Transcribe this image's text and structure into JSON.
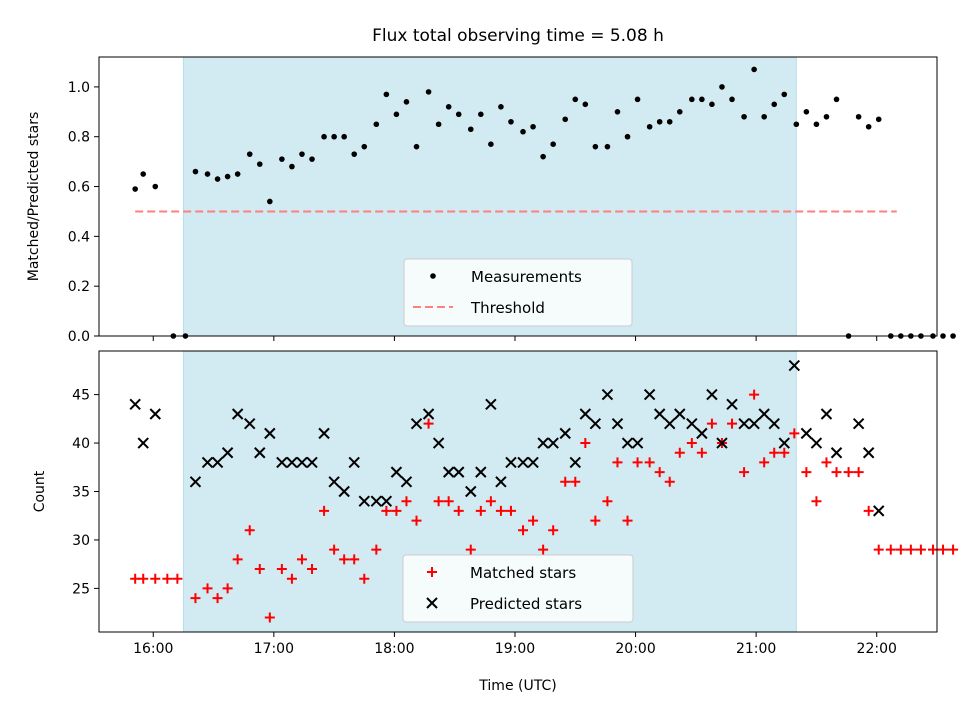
{
  "chart_data": [
    {
      "type": "scatter",
      "title": "Flux total observing time = 5.08 h",
      "ylabel": "Matched/Predicted stars",
      "xlabel": "",
      "xlim": [
        "15:33",
        "22:30"
      ],
      "ylim": [
        0,
        1.12
      ],
      "yticks": [
        "0.0",
        "0.2",
        "0.4",
        "0.6",
        "0.8",
        "1.0"
      ],
      "shaded_span": [
        "16:15",
        "21:20"
      ],
      "shade_color": "#add8e6",
      "legend_placement": "lower center",
      "series": [
        {
          "name": "Measurements",
          "marker": "dot",
          "color": "#000000",
          "points": [
            [
              "15:51",
              0.59
            ],
            [
              "15:55",
              0.65
            ],
            [
              "16:01",
              0.6
            ],
            [
              "16:10",
              0.0
            ],
            [
              "16:16",
              0.0
            ],
            [
              "16:21",
              0.66
            ],
            [
              "16:27",
              0.65
            ],
            [
              "16:32",
              0.63
            ],
            [
              "16:37",
              0.64
            ],
            [
              "16:42",
              0.65
            ],
            [
              "16:48",
              0.73
            ],
            [
              "16:53",
              0.69
            ],
            [
              "16:58",
              0.54
            ],
            [
              "17:04",
              0.71
            ],
            [
              "17:09",
              0.68
            ],
            [
              "17:14",
              0.73
            ],
            [
              "17:19",
              0.71
            ],
            [
              "17:25",
              0.8
            ],
            [
              "17:30",
              0.8
            ],
            [
              "17:35",
              0.8
            ],
            [
              "17:40",
              0.73
            ],
            [
              "17:45",
              0.76
            ],
            [
              "17:51",
              0.85
            ],
            [
              "17:56",
              0.97
            ],
            [
              "18:01",
              0.89
            ],
            [
              "18:06",
              0.94
            ],
            [
              "18:11",
              0.76
            ],
            [
              "18:17",
              0.98
            ],
            [
              "18:22",
              0.85
            ],
            [
              "18:27",
              0.92
            ],
            [
              "18:32",
              0.89
            ],
            [
              "18:38",
              0.83
            ],
            [
              "18:43",
              0.89
            ],
            [
              "18:48",
              0.77
            ],
            [
              "18:53",
              0.92
            ],
            [
              "18:58",
              0.86
            ],
            [
              "19:04",
              0.82
            ],
            [
              "19:09",
              0.84
            ],
            [
              "19:14",
              0.72
            ],
            [
              "19:19",
              0.77
            ],
            [
              "19:25",
              0.87
            ],
            [
              "19:30",
              0.95
            ],
            [
              "19:35",
              0.93
            ],
            [
              "19:40",
              0.76
            ],
            [
              "19:46",
              0.76
            ],
            [
              "19:51",
              0.9
            ],
            [
              "19:56",
              0.8
            ],
            [
              "20:01",
              0.95
            ],
            [
              "20:07",
              0.84
            ],
            [
              "20:12",
              0.86
            ],
            [
              "20:17",
              0.86
            ],
            [
              "20:22",
              0.9
            ],
            [
              "20:28",
              0.95
            ],
            [
              "20:33",
              0.95
            ],
            [
              "20:38",
              0.93
            ],
            [
              "20:43",
              1.0
            ],
            [
              "20:48",
              0.95
            ],
            [
              "20:54",
              0.88
            ],
            [
              "20:59",
              1.07
            ],
            [
              "21:04",
              0.88
            ],
            [
              "21:09",
              0.93
            ],
            [
              "21:14",
              0.97
            ],
            [
              "21:20",
              0.85
            ],
            [
              "21:25",
              0.9
            ],
            [
              "21:30",
              0.85
            ],
            [
              "21:35",
              0.88
            ],
            [
              "21:40",
              0.95
            ],
            [
              "21:46",
              0.0
            ],
            [
              "21:51",
              0.88
            ],
            [
              "21:56",
              0.84
            ],
            [
              "22:01",
              0.87
            ],
            [
              "22:07",
              0.0
            ],
            [
              "22:12",
              0.0
            ],
            [
              "22:17",
              0.0
            ],
            [
              "22:22",
              0.0
            ],
            [
              "22:28",
              0.0
            ],
            [
              "22:33",
              0.0
            ],
            [
              "22:38",
              0.0
            ]
          ]
        },
        {
          "name": "Threshold",
          "marker": "dashed-line",
          "color": "#ff7f7f",
          "points": [
            [
              "15:51",
              0.5
            ],
            [
              "22:10",
              0.5
            ]
          ]
        }
      ]
    },
    {
      "type": "scatter",
      "title": "",
      "ylabel": "Count",
      "xlabel": "Time (UTC)",
      "xlim": [
        "15:33",
        "22:30"
      ],
      "ylim": [
        20.5,
        49.5
      ],
      "yticks": [
        "25",
        "30",
        "35",
        "40",
        "45"
      ],
      "xticks": [
        "16:00",
        "17:00",
        "18:00",
        "19:00",
        "20:00",
        "21:00",
        "22:00"
      ],
      "shaded_span": [
        "16:15",
        "21:20"
      ],
      "shade_color": "#add8e6",
      "legend_placement": "lower center",
      "series": [
        {
          "name": "Matched stars",
          "marker": "plus",
          "color": "#ff0000",
          "points": [
            [
              "15:51",
              26
            ],
            [
              "15:55",
              26
            ],
            [
              "16:01",
              26
            ],
            [
              "16:07",
              26
            ],
            [
              "16:12",
              26
            ],
            [
              "16:21",
              24
            ],
            [
              "16:27",
              25
            ],
            [
              "16:32",
              24
            ],
            [
              "16:37",
              25
            ],
            [
              "16:42",
              28
            ],
            [
              "16:48",
              31
            ],
            [
              "16:53",
              27
            ],
            [
              "16:58",
              22
            ],
            [
              "17:04",
              27
            ],
            [
              "17:09",
              26
            ],
            [
              "17:14",
              28
            ],
            [
              "17:19",
              27
            ],
            [
              "17:25",
              33
            ],
            [
              "17:30",
              29
            ],
            [
              "17:35",
              28
            ],
            [
              "17:40",
              28
            ],
            [
              "17:45",
              26
            ],
            [
              "17:51",
              29
            ],
            [
              "17:56",
              33
            ],
            [
              "18:01",
              33
            ],
            [
              "18:06",
              34
            ],
            [
              "18:11",
              32
            ],
            [
              "18:17",
              42
            ],
            [
              "18:22",
              34
            ],
            [
              "18:27",
              34
            ],
            [
              "18:32",
              33
            ],
            [
              "18:38",
              29
            ],
            [
              "18:43",
              33
            ],
            [
              "18:48",
              34
            ],
            [
              "18:53",
              33
            ],
            [
              "18:58",
              33
            ],
            [
              "19:04",
              31
            ],
            [
              "19:09",
              32
            ],
            [
              "19:14",
              29
            ],
            [
              "19:19",
              31
            ],
            [
              "19:25",
              36
            ],
            [
              "19:30",
              36
            ],
            [
              "19:35",
              40
            ],
            [
              "19:40",
              32
            ],
            [
              "19:46",
              34
            ],
            [
              "19:51",
              38
            ],
            [
              "19:56",
              32
            ],
            [
              "20:01",
              38
            ],
            [
              "20:07",
              38
            ],
            [
              "20:12",
              37
            ],
            [
              "20:17",
              36
            ],
            [
              "20:22",
              39
            ],
            [
              "20:28",
              40
            ],
            [
              "20:33",
              39
            ],
            [
              "20:38",
              42
            ],
            [
              "20:43",
              40
            ],
            [
              "20:48",
              42
            ],
            [
              "20:54",
              37
            ],
            [
              "20:59",
              45
            ],
            [
              "21:04",
              38
            ],
            [
              "21:09",
              39
            ],
            [
              "21:14",
              39
            ],
            [
              "21:19",
              41
            ],
            [
              "21:25",
              37
            ],
            [
              "21:30",
              34
            ],
            [
              "21:35",
              38
            ],
            [
              "21:40",
              37
            ],
            [
              "21:46",
              37
            ],
            [
              "21:51",
              37
            ],
            [
              "21:56",
              33
            ],
            [
              "22:01",
              29
            ],
            [
              "22:07",
              29
            ],
            [
              "22:12",
              29
            ],
            [
              "22:17",
              29
            ],
            [
              "22:22",
              29
            ],
            [
              "22:28",
              29
            ],
            [
              "22:33",
              29
            ],
            [
              "22:38",
              29
            ]
          ]
        },
        {
          "name": "Predicted stars",
          "marker": "x",
          "color": "#000000",
          "points": [
            [
              "15:51",
              44
            ],
            [
              "15:55",
              40
            ],
            [
              "16:01",
              43
            ],
            [
              "16:21",
              36
            ],
            [
              "16:27",
              38
            ],
            [
              "16:32",
              38
            ],
            [
              "16:37",
              39
            ],
            [
              "16:42",
              43
            ],
            [
              "16:48",
              42
            ],
            [
              "16:53",
              39
            ],
            [
              "16:58",
              41
            ],
            [
              "17:04",
              38
            ],
            [
              "17:09",
              38
            ],
            [
              "17:14",
              38
            ],
            [
              "17:19",
              38
            ],
            [
              "17:25",
              41
            ],
            [
              "17:30",
              36
            ],
            [
              "17:35",
              35
            ],
            [
              "17:40",
              38
            ],
            [
              "17:45",
              34
            ],
            [
              "17:51",
              34
            ],
            [
              "17:56",
              34
            ],
            [
              "18:01",
              37
            ],
            [
              "18:06",
              36
            ],
            [
              "18:11",
              42
            ],
            [
              "18:17",
              43
            ],
            [
              "18:22",
              40
            ],
            [
              "18:27",
              37
            ],
            [
              "18:32",
              37
            ],
            [
              "18:38",
              35
            ],
            [
              "18:43",
              37
            ],
            [
              "18:48",
              44
            ],
            [
              "18:53",
              36
            ],
            [
              "18:58",
              38
            ],
            [
              "19:04",
              38
            ],
            [
              "19:09",
              38
            ],
            [
              "19:14",
              40
            ],
            [
              "19:19",
              40
            ],
            [
              "19:25",
              41
            ],
            [
              "19:30",
              38
            ],
            [
              "19:35",
              43
            ],
            [
              "19:40",
              42
            ],
            [
              "19:46",
              45
            ],
            [
              "19:51",
              42
            ],
            [
              "19:56",
              40
            ],
            [
              "20:01",
              40
            ],
            [
              "20:07",
              45
            ],
            [
              "20:12",
              43
            ],
            [
              "20:17",
              42
            ],
            [
              "20:22",
              43
            ],
            [
              "20:28",
              42
            ],
            [
              "20:33",
              41
            ],
            [
              "20:38",
              45
            ],
            [
              "20:43",
              40
            ],
            [
              "20:48",
              44
            ],
            [
              "20:54",
              42
            ],
            [
              "20:59",
              42
            ],
            [
              "21:04",
              43
            ],
            [
              "21:09",
              42
            ],
            [
              "21:14",
              40
            ],
            [
              "21:19",
              48
            ],
            [
              "21:25",
              41
            ],
            [
              "21:30",
              40
            ],
            [
              "21:35",
              43
            ],
            [
              "21:40",
              39
            ],
            [
              "21:51",
              42
            ],
            [
              "21:56",
              39
            ],
            [
              "22:01",
              33
            ]
          ]
        }
      ]
    }
  ]
}
